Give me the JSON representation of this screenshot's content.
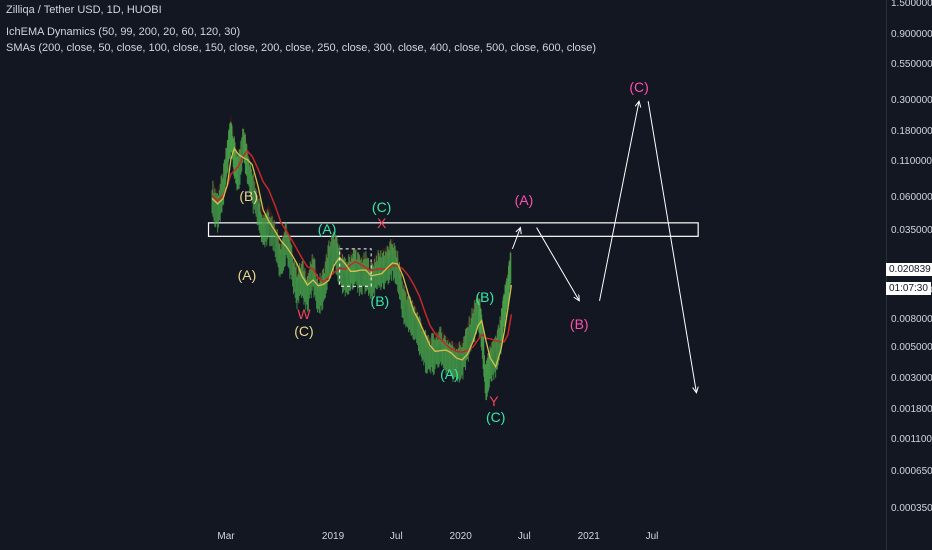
{
  "header": {
    "title": "Zilliqa / Tether USD, 1D, HUOBI",
    "indicator1": "IchEMA Dynamics (50, 99, 200, 20, 60, 120, 30)",
    "indicator2": "SMAs (200, close, 50, close, 100, close, 150, close, 200, close, 250, close, 300, close, 400, close, 500, close, 600, close)"
  },
  "price_tag": "0.020839",
  "time_tag": "01:07:30",
  "colors": {
    "background": "#131722",
    "zone": "#ffffff",
    "projection": "#ffffff",
    "yellow_label": "#e8d88a",
    "green_label": "#39e6a7",
    "red_label": "#f0445a",
    "pink_label": "#ff4fb0",
    "candle_green": "#4caf50",
    "ema_yellow": "#d4c24a",
    "sma_red": "#c62828",
    "cloud": "#5a1b1b"
  },
  "chart_data": {
    "type": "line",
    "title": "Zilliqa / Tether USD, 1D, HUOBI",
    "scale": "log",
    "yticks": [
      "1.500000",
      "0.900000",
      "0.550000",
      "0.300000",
      "0.180000",
      "0.110000",
      "0.060000",
      "0.035000",
      "0.013000",
      "0.008000",
      "0.005000",
      "0.003000",
      "0.001800",
      "0.001100",
      "0.000650",
      "0.000350"
    ],
    "xticks": [
      "Mar",
      "2019",
      "Jul",
      "2020",
      "Jul",
      "2021",
      "Jul"
    ],
    "ylim": [
      0.0003,
      1.6
    ],
    "series": [
      {
        "values": [
          [
            "2018-01-20",
            0.06
          ],
          [
            "2018-02-05",
            0.05
          ],
          [
            "2018-02-20",
            0.07
          ],
          [
            "2018-03-05",
            0.12
          ],
          [
            "2018-03-15",
            0.18
          ],
          [
            "2018-03-25",
            0.12
          ],
          [
            "2018-04-05",
            0.09
          ],
          [
            "2018-04-20",
            0.15
          ],
          [
            "2018-05-01",
            0.11
          ],
          [
            "2018-05-15",
            0.07
          ],
          [
            "2018-06-01",
            0.05
          ],
          [
            "2018-06-15",
            0.035
          ],
          [
            "2018-07-01",
            0.04
          ],
          [
            "2018-07-20",
            0.03
          ],
          [
            "2018-08-05",
            0.022
          ],
          [
            "2018-08-20",
            0.03
          ],
          [
            "2018-09-05",
            0.02
          ],
          [
            "2018-09-20",
            0.014
          ],
          [
            "2018-10-05",
            0.016
          ],
          [
            "2018-10-20",
            0.013
          ],
          [
            "2018-11-05",
            0.018
          ],
          [
            "2018-11-20",
            0.012
          ],
          [
            "2018-12-05",
            0.014
          ],
          [
            "2018-12-20",
            0.022
          ],
          [
            "2019-01-05",
            0.026
          ],
          [
            "2019-01-20",
            0.02
          ],
          [
            "2019-02-05",
            0.016
          ],
          [
            "2019-02-20",
            0.018
          ],
          [
            "2019-03-05",
            0.02
          ],
          [
            "2019-03-20",
            0.017
          ],
          [
            "2019-04-05",
            0.018
          ],
          [
            "2019-04-20",
            0.015
          ],
          [
            "2019-05-05",
            0.018
          ],
          [
            "2019-05-20",
            0.019
          ],
          [
            "2019-06-05",
            0.02
          ],
          [
            "2019-06-20",
            0.023
          ],
          [
            "2019-07-05",
            0.018
          ],
          [
            "2019-07-20",
            0.011
          ],
          [
            "2019-08-05",
            0.009
          ],
          [
            "2019-08-20",
            0.008
          ],
          [
            "2019-09-05",
            0.0065
          ],
          [
            "2019-09-20",
            0.005
          ],
          [
            "2019-10-05",
            0.0045
          ],
          [
            "2019-10-20",
            0.0048
          ],
          [
            "2019-11-05",
            0.0052
          ],
          [
            "2019-11-20",
            0.0046
          ],
          [
            "2019-12-05",
            0.0042
          ],
          [
            "2019-12-20",
            0.004
          ],
          [
            "2020-01-05",
            0.0042
          ],
          [
            "2020-01-20",
            0.0055
          ],
          [
            "2020-02-05",
            0.0075
          ],
          [
            "2020-02-20",
            0.0095
          ],
          [
            "2020-03-01",
            0.007
          ],
          [
            "2020-03-13",
            0.0028
          ],
          [
            "2020-03-25",
            0.004
          ],
          [
            "2020-04-10",
            0.0045
          ],
          [
            "2020-04-25",
            0.0065
          ],
          [
            "2020-05-05",
            0.01
          ],
          [
            "2020-05-15",
            0.014
          ],
          [
            "2020-05-25",
            0.020839
          ]
        ]
      }
    ],
    "zone": {
      "low": 0.032,
      "high": 0.04,
      "from": "2018-01-10",
      "to": "2021-11-10"
    },
    "projection": [
      [
        "2020-05-28",
        0.026
      ],
      [
        "2020-06-20",
        0.037
      ],
      [
        "2020-08-05",
        0.037
      ],
      [
        "2020-12-05",
        0.011
      ],
      [
        "2021-02-01",
        0.011
      ],
      [
        "2021-05-25",
        0.3
      ],
      [
        "2021-06-20",
        0.3
      ],
      [
        "2021-11-05",
        0.0024
      ]
    ],
    "annotations": [
      {
        "text": "(B)",
        "color": "yellow",
        "date": "2018-05-05",
        "value": 0.062
      },
      {
        "text": "(A)",
        "color": "yellow",
        "date": "2018-04-30",
        "value": 0.017
      },
      {
        "text": "W",
        "color": "red",
        "date": "2018-10-10",
        "value": 0.0088
      },
      {
        "text": "(C)",
        "color": "yellow",
        "date": "2018-10-10",
        "value": 0.0067
      },
      {
        "text": "(A)",
        "color": "green",
        "date": "2018-12-15",
        "value": 0.036
      },
      {
        "text": "(C)",
        "color": "green",
        "date": "2019-05-20",
        "value": 0.052
      },
      {
        "text": "X",
        "color": "red",
        "date": "2019-05-20",
        "value": 0.04
      },
      {
        "text": "(B)",
        "color": "green",
        "date": "2019-05-15",
        "value": 0.011
      },
      {
        "text": "(B)",
        "color": "green",
        "date": "2020-03-10",
        "value": 0.0118
      },
      {
        "text": "(A)",
        "color": "green",
        "date": "2019-11-30",
        "value": 0.0033
      },
      {
        "text": "Y",
        "color": "red",
        "date": "2020-04-05",
        "value": 0.0021
      },
      {
        "text": "(C)",
        "color": "green",
        "date": "2020-04-10",
        "value": 0.0016
      },
      {
        "text": "(A)",
        "color": "pink",
        "date": "2020-06-30",
        "value": 0.058
      },
      {
        "text": "(B)",
        "color": "pink",
        "date": "2020-12-05",
        "value": 0.0075
      },
      {
        "text": "(C)",
        "color": "pink",
        "date": "2021-05-25",
        "value": 0.38
      }
    ]
  }
}
